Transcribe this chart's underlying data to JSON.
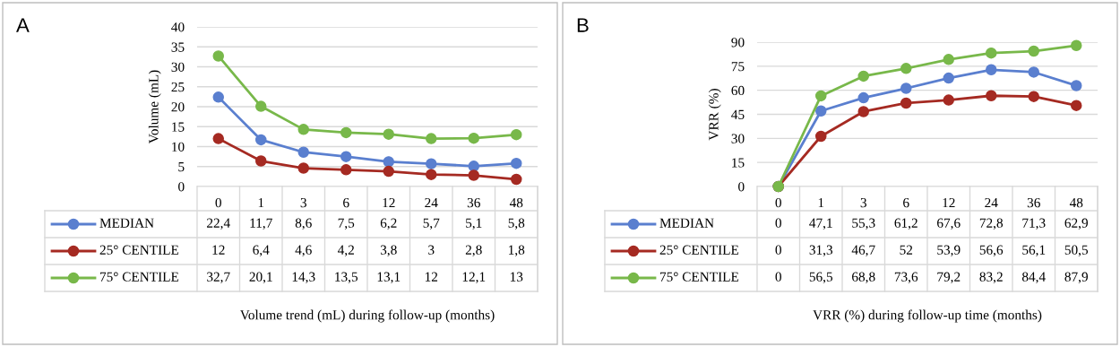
{
  "chart_data": [
    {
      "type": "line",
      "annotations": [
        "A"
      ],
      "ylabel": "Volume (mL)",
      "xlabel": "Volume trend (mL) during follow-up (months)",
      "categories": [
        "0",
        "1",
        "3",
        "6",
        "12",
        "24",
        "36",
        "48"
      ],
      "ylim": [
        0,
        40
      ],
      "yticks": [
        0,
        5,
        10,
        15,
        20,
        25,
        30,
        35,
        40
      ],
      "grid": "y",
      "marker": "circle",
      "legend": "bottom left",
      "series": [
        {
          "name": "MEDIAN",
          "color": "#5a7fcf",
          "values": [
            22.4,
            11.7,
            8.6,
            7.5,
            6.2,
            5.7,
            5.1,
            5.8
          ],
          "value_labels": [
            "22,4",
            "11,7",
            "8,6",
            "7,5",
            "6,2",
            "5,7",
            "5,1",
            "5,8"
          ]
        },
        {
          "name": "25° CENTILE",
          "color": "#a52a22",
          "values": [
            12,
            6.4,
            4.6,
            4.2,
            3.8,
            3,
            2.8,
            1.8
          ],
          "value_labels": [
            "12",
            "6,4",
            "4,6",
            "4,2",
            "3,8",
            "3",
            "2,8",
            "1,8"
          ]
        },
        {
          "name": "75° CENTILE",
          "color": "#78b84a",
          "values": [
            32.7,
            20.1,
            14.3,
            13.5,
            13.1,
            12,
            12.1,
            13
          ],
          "value_labels": [
            "32,7",
            "20,1",
            "14,3",
            "13,5",
            "13,1",
            "12",
            "12,1",
            "13"
          ]
        }
      ]
    },
    {
      "type": "line",
      "annotations": [
        "B"
      ],
      "ylabel": "VRR (%)",
      "xlabel": "VRR (%) during follow-up time (months)",
      "categories": [
        "0",
        "1",
        "3",
        "6",
        "12",
        "24",
        "36",
        "48"
      ],
      "ylim": [
        0,
        90
      ],
      "yticks": [
        0,
        15,
        30,
        45,
        60,
        75,
        90
      ],
      "grid": "y",
      "marker": "circle",
      "legend": "bottom left",
      "series": [
        {
          "name": "MEDIAN",
          "color": "#5a7fcf",
          "values": [
            0,
            47.1,
            55.3,
            61.2,
            67.6,
            72.8,
            71.3,
            62.9
          ],
          "value_labels": [
            "0",
            "47,1",
            "55,3",
            "61,2",
            "67,6",
            "72,8",
            "71,3",
            "62,9"
          ]
        },
        {
          "name": "25° CENTILE",
          "color": "#a52a22",
          "values": [
            0,
            31.3,
            46.7,
            52,
            53.9,
            56.6,
            56.1,
            50.5
          ],
          "value_labels": [
            "0",
            "31,3",
            "46,7",
            "52",
            "53,9",
            "56,6",
            "56,1",
            "50,5"
          ]
        },
        {
          "name": "75° CENTILE",
          "color": "#78b84a",
          "values": [
            0,
            56.5,
            68.8,
            73.6,
            79.2,
            83.2,
            84.4,
            87.9
          ],
          "value_labels": [
            "0",
            "56,5",
            "68,8",
            "73,6",
            "79,2",
            "83,2",
            "84,4",
            "87,9"
          ]
        }
      ]
    }
  ]
}
